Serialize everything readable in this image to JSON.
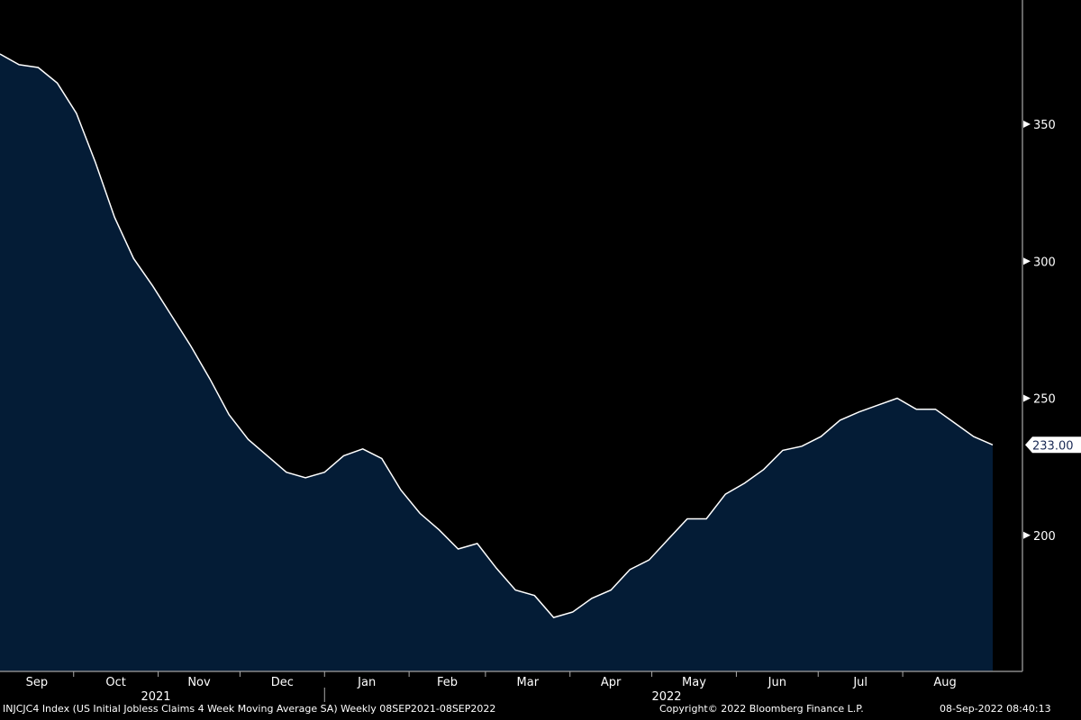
{
  "chart_data": {
    "type": "area",
    "title": "",
    "xlabel": "",
    "ylabel": "",
    "ylim": [
      150,
      378
    ],
    "grid": false,
    "yticks": [
      200,
      250,
      300,
      350
    ],
    "last_value_label": "233.00",
    "x_month_labels": [
      "Sep",
      "Oct",
      "Nov",
      "Dec",
      "Jan",
      "Feb",
      "Mar",
      "Apr",
      "May",
      "Jun",
      "Jul",
      "Aug"
    ],
    "x_year_labels": [
      "2021",
      "2022"
    ],
    "colors": {
      "fill": "#041c36",
      "line": "#ffffff",
      "background": "#000000"
    },
    "series": [
      {
        "start_date": "2021-09-04",
        "frequency": "weekly",
        "values": [
          375.6,
          371.7,
          370.7,
          365,
          354,
          336,
          316,
          301,
          291,
          280,
          269,
          257,
          244,
          235,
          229,
          223,
          221,
          223,
          229,
          231.5,
          228,
          216.5,
          208,
          202,
          195,
          197,
          188,
          180,
          178,
          170,
          172,
          177,
          180,
          187.5,
          191,
          198.5,
          206,
          206,
          215,
          219,
          224,
          231,
          232.5,
          236,
          242,
          245,
          247.5,
          250,
          246,
          246,
          241,
          236,
          233
        ]
      }
    ]
  },
  "footer": {
    "description": "INJCJC4 Index (US Initial Jobless Claims 4 Week Moving Average SA)  Weekly 08SEP2021-08SEP2022",
    "copyright": "Copyright© 2022 Bloomberg Finance L.P.",
    "timestamp": "08-Sep-2022 08:40:13"
  }
}
